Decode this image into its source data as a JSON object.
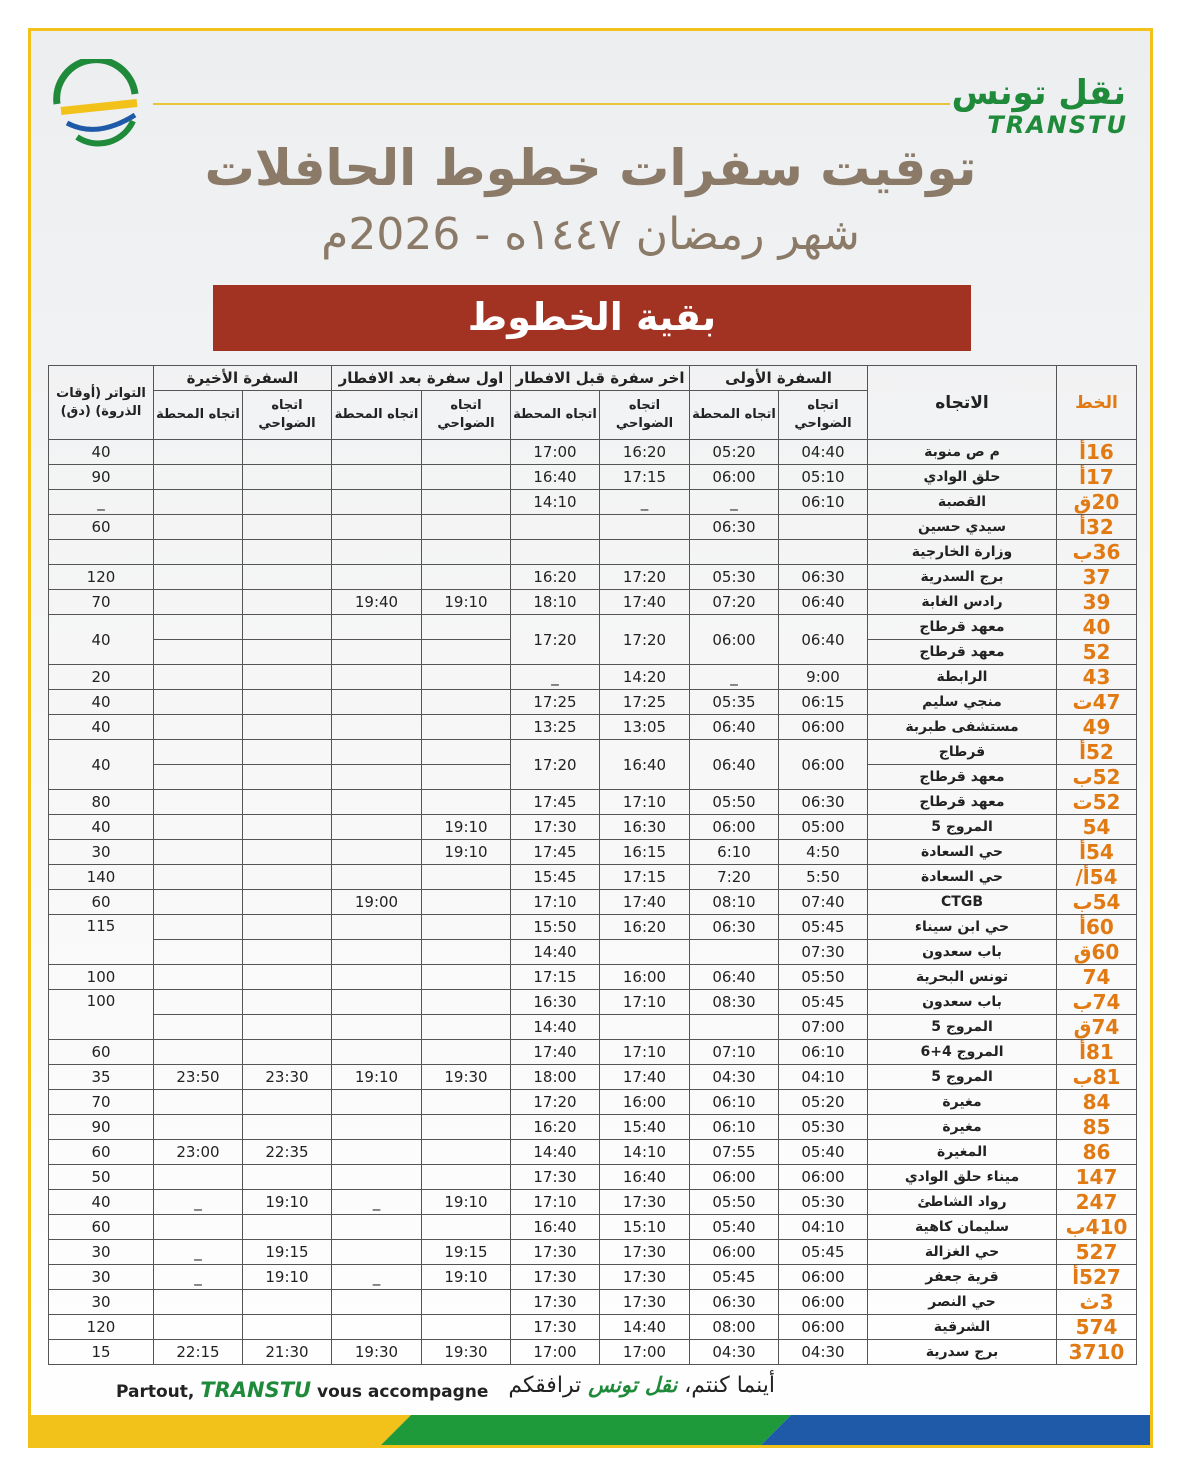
{
  "header": {
    "logo_ar": "نقل تونس",
    "logo_en": "TRANSTU",
    "title": "توقيت سفرات خطوط الحافلات",
    "subtitle": "شهر رمضان ١٤٤٧ه - 2026م",
    "banner": "بقية الخطوط"
  },
  "table": {
    "headers": {
      "line": "الخط",
      "direction": "الاتجاه",
      "groups": [
        "السفرة الأولى",
        "اخر سفرة قبل الافطار",
        "اول سفرة بعد الافطار",
        "السفرة الأخيرة"
      ],
      "sub": [
        [
          "اتجاه الضواحي",
          "اتجاه المحطة"
        ],
        [
          "اتجاه الضواحي",
          "اتجاه المحطة"
        ],
        [
          "اتجاه الضواحي",
          "اتجاه المحطة"
        ],
        [
          "اتجاه الضواحي",
          "اتجاه المحطة"
        ]
      ],
      "frequency": "التواتر (أوقات الذروة) (دق)"
    },
    "rows": [
      [
        "16أ",
        "م ص منوبة",
        "04:40",
        "05:20",
        "16:20",
        "17:00",
        null,
        null,
        null,
        null,
        "40"
      ],
      [
        "17أ",
        "حلق الوادي",
        "05:10",
        "06:00",
        "17:15",
        "16:40",
        null,
        null,
        null,
        null,
        "90"
      ],
      [
        "20ق",
        "القصبة",
        "06:10",
        "_",
        "_",
        "14:10",
        null,
        null,
        null,
        null,
        "_"
      ],
      [
        "32أ",
        "سيدي حسين",
        null,
        "06:30",
        null,
        null,
        null,
        null,
        null,
        null,
        "60"
      ],
      [
        "36ب",
        "وزارة الخارجية",
        null,
        null,
        null,
        null,
        null,
        null,
        null,
        null,
        null
      ],
      [
        "37",
        "برج السدرية",
        "06:30",
        "05:30",
        "17:20",
        "16:20",
        null,
        null,
        null,
        null,
        "120"
      ],
      [
        "39",
        "رادس الغابة",
        "06:40",
        "07:20",
        "17:40",
        "18:10",
        "19:10",
        "19:40",
        null,
        null,
        "70"
      ],
      [
        "40",
        "معهد قرطاج",
        "06:40",
        "06:00",
        "17:20",
        "17:20",
        null,
        null,
        null,
        null,
        "40"
      ],
      [
        "52",
        "معهد قرطاج",
        null,
        null,
        null,
        null,
        null,
        null,
        null,
        null,
        null
      ],
      [
        "43",
        "الرابطة",
        "9:00",
        "_",
        "14:20",
        "_",
        null,
        null,
        null,
        null,
        "20"
      ],
      [
        "47ت",
        "منجي سليم",
        "06:15",
        "05:35",
        "17:25",
        "17:25",
        null,
        null,
        null,
        null,
        "40"
      ],
      [
        "49",
        "مستشفى طبربة",
        "06:00",
        "06:40",
        "13:05",
        "13:25",
        null,
        null,
        null,
        null,
        "40"
      ],
      [
        "52أ",
        "قرطاج",
        "06:00",
        "06:40",
        "16:40",
        "17:20",
        null,
        null,
        null,
        null,
        "40"
      ],
      [
        "52ب",
        "معهد قرطاج",
        null,
        null,
        null,
        null,
        null,
        null,
        null,
        null,
        null
      ],
      [
        "52ت",
        "معهد قرطاج",
        "06:30",
        "05:50",
        "17:10",
        "17:45",
        null,
        null,
        null,
        null,
        "80"
      ],
      [
        "54",
        "المروج 5",
        "05:00",
        "06:00",
        "16:30",
        "17:30",
        "19:10",
        null,
        null,
        null,
        "40"
      ],
      [
        "54أ",
        "حي السعادة",
        "4:50",
        "6:10",
        "16:15",
        "17:45",
        "19:10",
        null,
        null,
        null,
        "30"
      ],
      [
        "54أ/",
        "حي السعادة",
        "5:50",
        "7:20",
        "17:15",
        "15:45",
        null,
        null,
        null,
        null,
        "140"
      ],
      [
        "54ب",
        "CTGB",
        "07:40",
        "08:10",
        "17:40",
        "17:10",
        null,
        "19:00",
        null,
        null,
        "60"
      ],
      [
        "60أ",
        "حي ابن سيناء",
        "05:45",
        "06:30",
        "16:20",
        "15:50",
        null,
        null,
        null,
        null,
        "115"
      ],
      [
        "60ق",
        "باب سعدون",
        "07:30",
        null,
        null,
        "14:40",
        null,
        null,
        null,
        null,
        null
      ],
      [
        "74",
        "تونس البحرية",
        "05:50",
        "06:40",
        "16:00",
        "17:15",
        null,
        null,
        null,
        null,
        "100"
      ],
      [
        "74ب",
        "باب سعدون",
        "05:45",
        "08:30",
        "17:10",
        "16:30",
        null,
        null,
        null,
        null,
        "100"
      ],
      [
        "74ق",
        "المروج 5",
        "07:00",
        null,
        null,
        "14:40",
        null,
        null,
        null,
        null,
        null
      ],
      [
        "81أ",
        "المروج 4+6",
        "06:10",
        "07:10",
        "17:10",
        "17:40",
        null,
        null,
        null,
        null,
        "60"
      ],
      [
        "81ب",
        "المروج 5",
        "04:10",
        "04:30",
        "17:40",
        "18:00",
        "19:30",
        "19:10",
        "23:30",
        "23:50",
        "35"
      ],
      [
        "84",
        "مغيرة",
        "05:20",
        "06:10",
        "16:00",
        "17:20",
        null,
        null,
        null,
        null,
        "70"
      ],
      [
        "85",
        "مغيرة",
        "05:30",
        "06:10",
        "15:40",
        "16:20",
        null,
        null,
        null,
        null,
        "90"
      ],
      [
        "86",
        "المغيرة",
        "05:40",
        "07:55",
        "14:10",
        "14:40",
        null,
        null,
        "22:35",
        "23:00",
        "60"
      ],
      [
        "147",
        "ميناء حلق الوادي",
        "06:00",
        "06:00",
        "16:40",
        "17:30",
        null,
        null,
        null,
        null,
        "50"
      ],
      [
        "247",
        "رواد الشاطئ",
        "05:30",
        "05:50",
        "17:30",
        "17:10",
        "19:10",
        "_",
        "19:10",
        "_",
        "40"
      ],
      [
        "410ب",
        "سليمان كاهية",
        "04:10",
        "05:40",
        "15:10",
        "16:40",
        null,
        null,
        null,
        null,
        "60"
      ],
      [
        "527",
        "حي الغزالة",
        "05:45",
        "06:00",
        "17:30",
        "17:30",
        "19:15",
        null,
        "19:15",
        "_",
        "30"
      ],
      [
        "527أ",
        "قرية جعفر",
        "06:00",
        "05:45",
        "17:30",
        "17:30",
        "19:10",
        "_",
        "19:10",
        "_",
        "30"
      ],
      [
        "3ث",
        "حي النصر",
        "06:00",
        "06:30",
        "17:30",
        "17:30",
        null,
        null,
        null,
        null,
        "30"
      ],
      [
        "574",
        "الشرقية",
        "06:00",
        "08:00",
        "14:40",
        "17:30",
        null,
        null,
        null,
        null,
        "120"
      ],
      [
        "3710",
        "برج سدرية",
        "04:30",
        "04:30",
        "17:00",
        "17:00",
        "19:30",
        "19:30",
        "21:30",
        "22:15",
        "15"
      ]
    ]
  },
  "footer": {
    "fr": [
      "Partout,",
      "TRANSTU",
      "vous accompagne"
    ],
    "ar": [
      "أينما كنتم،",
      "نقل تونس",
      "ترافقكم"
    ]
  }
}
